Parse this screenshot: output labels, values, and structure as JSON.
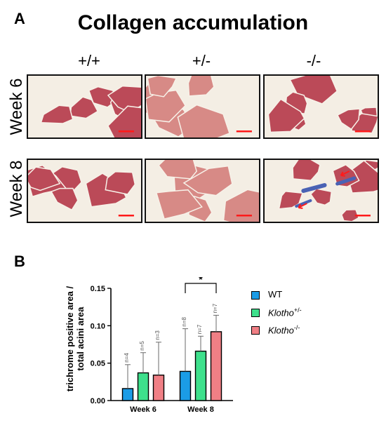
{
  "panels": {
    "a": "A",
    "b": "B"
  },
  "figure_title": "Collagen accumulation",
  "columns": [
    "+/+",
    "+/-",
    "-/-"
  ],
  "rows": [
    "Week 6",
    "Week 8"
  ],
  "colors": {
    "wt": "#1b9ce6",
    "het": "#3ee08c",
    "ko": "#f07f85",
    "tissue": "#bb4a58",
    "tissue_light": "#d78a86",
    "background": "#f4eee4",
    "collagen": "#4a62b4",
    "scale_bar": "#ff1a1a"
  },
  "chart_data": {
    "type": "bar",
    "categories": [
      "Week 6",
      "Week 8"
    ],
    "ylabel_lines": [
      "trichrome positive area /",
      "total acini area"
    ],
    "ylim": [
      0,
      0.15
    ],
    "yticks": [
      0.0,
      0.05,
      0.1,
      0.15
    ],
    "ytick_labels": [
      "0.00",
      "0.05",
      "0.10",
      "0.15"
    ],
    "series": [
      {
        "name": "WT",
        "sup": "",
        "values": [
          0.016,
          0.039
        ],
        "err": [
          0.032,
          0.057
        ],
        "n": [
          "n=4",
          "n=8"
        ]
      },
      {
        "name": "Klotho",
        "sup": "+/-",
        "values": [
          0.037,
          0.066
        ],
        "err": [
          0.027,
          0.02
        ],
        "n": [
          "n=5",
          "n=7"
        ]
      },
      {
        "name": "Klotho",
        "sup": "-/-",
        "values": [
          0.034,
          0.092
        ],
        "err": [
          0.044,
          0.022
        ],
        "n": [
          "n=3",
          "n=7"
        ]
      }
    ],
    "significance": {
      "label": "*",
      "category": "Week 8",
      "from_series": 0,
      "to_series": 2
    },
    "legend_position": "right",
    "grid": false
  }
}
